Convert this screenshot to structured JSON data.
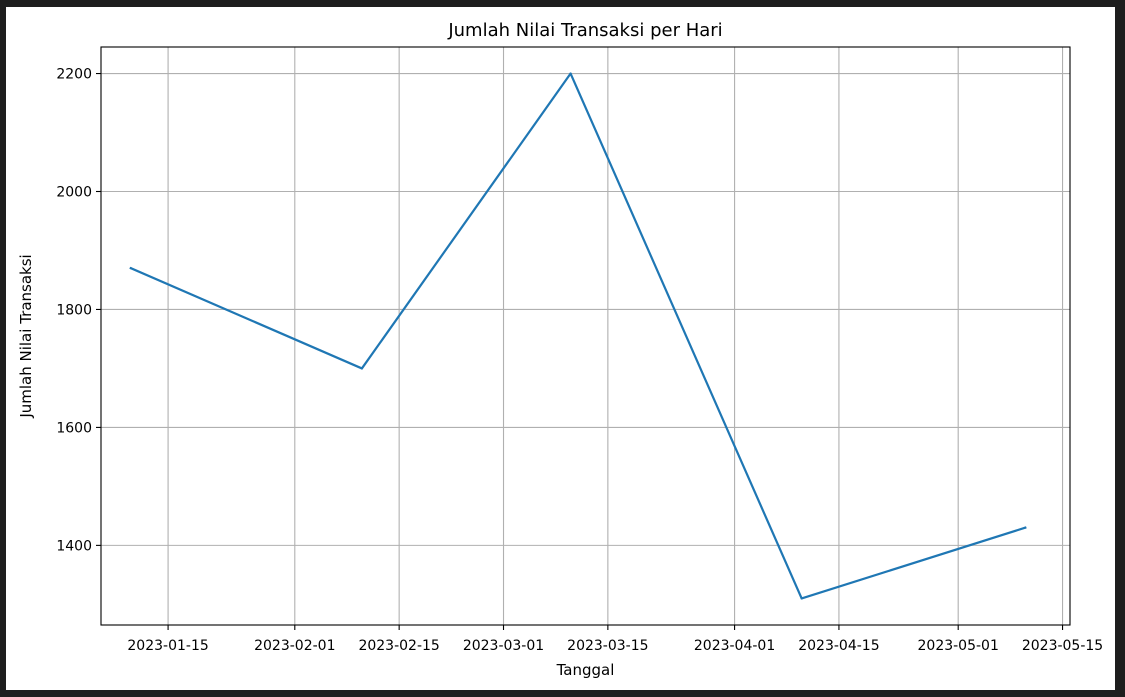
{
  "chart_data": {
    "type": "line",
    "title": "Jumlah Nilai Transaksi per Hari",
    "xlabel": "Tanggal",
    "ylabel": "Jumlah Nilai Transaksi",
    "x_ticks": [
      "2023-01-15",
      "2023-02-01",
      "2023-02-15",
      "2023-03-01",
      "2023-03-15",
      "2023-04-01",
      "2023-04-15",
      "2023-05-01",
      "2023-05-15"
    ],
    "y_ticks": [
      1400,
      1600,
      1800,
      2000,
      2200
    ],
    "xlim": [
      "2023-01-06",
      "2023-05-16"
    ],
    "ylim": [
      1265,
      2245
    ],
    "grid": true,
    "series": [
      {
        "color": "#1f77b4",
        "points": [
          {
            "x": "2023-01-10",
            "y": 1870
          },
          {
            "x": "2023-02-10",
            "y": 1700
          },
          {
            "x": "2023-03-10",
            "y": 2200
          },
          {
            "x": "2023-04-10",
            "y": 1310
          },
          {
            "x": "2023-05-10",
            "y": 1430
          }
        ]
      }
    ]
  }
}
